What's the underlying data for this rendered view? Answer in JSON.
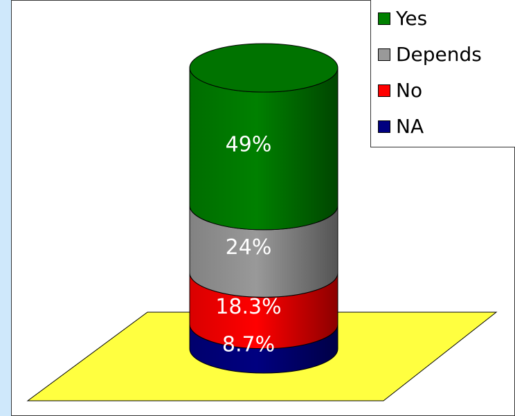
{
  "chart_data": {
    "type": "bar",
    "subtype": "stacked-3d-cylinder",
    "unit": "%",
    "legend_position": "top-right",
    "grid": false,
    "series": [
      {
        "name": "NA",
        "value": 8.7,
        "label": "8.7%",
        "color": "#000080"
      },
      {
        "name": "No",
        "value": 18.3,
        "label": "18.3%",
        "color": "#ff0000"
      },
      {
        "name": "Depends",
        "value": 24,
        "label": "24%",
        "color": "#999999"
      },
      {
        "name": "Yes",
        "value": 49,
        "label": "49%",
        "color": "#008000"
      }
    ],
    "legend": [
      "Yes",
      "Depends",
      "No",
      "NA"
    ],
    "floor_color": "#ffff40",
    "background_color": "#cfe8fb"
  }
}
